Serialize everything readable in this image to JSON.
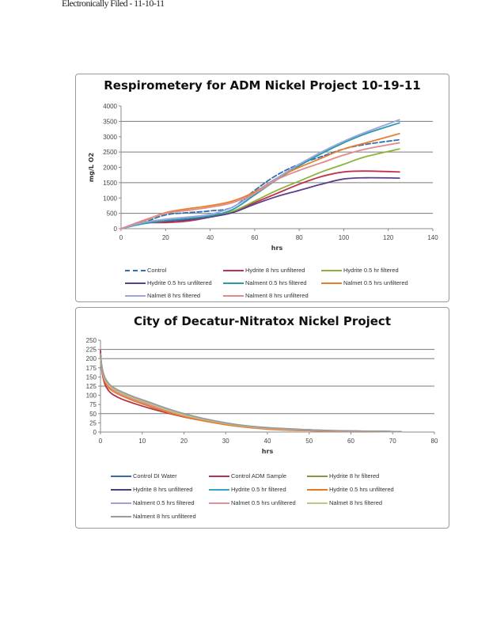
{
  "header": {
    "text": "Electronically Filed - 11-10-11"
  },
  "chart_data": [
    {
      "type": "line",
      "title": "Respirometery for ADM Nickel Project 10-19-11",
      "xlabel": "hrs",
      "ylabel": "mg/L O2",
      "xlim": [
        0,
        140
      ],
      "ylim": [
        0,
        4000
      ],
      "xticks": [
        "0",
        "20",
        "40",
        "60",
        "80",
        "100",
        "120",
        "140"
      ],
      "yticks": [
        "0",
        "500",
        "1000",
        "1500",
        "2000",
        "2500",
        "3000",
        "3500",
        "4000"
      ],
      "gridlines_y": [
        500,
        1500,
        2500,
        3500
      ],
      "legend_position": "bottom",
      "x": [
        0,
        10,
        20,
        30,
        40,
        50,
        60,
        70,
        80,
        90,
        100,
        110,
        125
      ],
      "series": [
        {
          "name": "Control",
          "color": "#2e6fb5",
          "dashed": true,
          "values": [
            0,
            200,
            450,
            520,
            580,
            700,
            1250,
            1750,
            2100,
            2350,
            2600,
            2750,
            2900
          ]
        },
        {
          "name": "Hydrite 8 hrs unfiltered",
          "color": "#c0314b",
          "values": [
            0,
            180,
            200,
            250,
            380,
            550,
            850,
            1150,
            1450,
            1700,
            1850,
            1880,
            1850
          ]
        },
        {
          "name": "Hydrite 0.5 hr filtered",
          "color": "#8db33a",
          "values": [
            0,
            190,
            260,
            300,
            400,
            560,
            900,
            1250,
            1550,
            1850,
            2100,
            2350,
            2600
          ]
        },
        {
          "name": "Hydrite 0.5 hrs unfiltered",
          "color": "#5b3f8c",
          "values": [
            0,
            180,
            240,
            290,
            380,
            520,
            800,
            1050,
            1250,
            1450,
            1620,
            1660,
            1650
          ]
        },
        {
          "name": "Nalment 0.5 hrs filtered",
          "color": "#2a9aa8",
          "values": [
            0,
            160,
            260,
            330,
            420,
            620,
            1100,
            1600,
            2050,
            2450,
            2800,
            3100,
            3450
          ]
        },
        {
          "name": "Nalmet 0.5 hrs unfiltered",
          "color": "#e87f2a",
          "values": [
            0,
            250,
            520,
            650,
            750,
            900,
            1200,
            1650,
            2000,
            2300,
            2600,
            2800,
            3100
          ]
        },
        {
          "name": "Nalmet 8 hrs filtered",
          "color": "#9aa6dd",
          "values": [
            0,
            200,
            310,
            380,
            470,
            700,
            1150,
            1650,
            2100,
            2500,
            2850,
            3150,
            3550
          ]
        },
        {
          "name": "Nalment 8 hrs unfiltered",
          "color": "#e08a8a",
          "values": [
            0,
            270,
            500,
            600,
            700,
            850,
            1150,
            1600,
            1900,
            2150,
            2400,
            2600,
            2800
          ]
        }
      ]
    },
    {
      "type": "line",
      "title": "City of Decatur-Nitratox Nickel Project",
      "xlabel": "hrs",
      "ylabel": "",
      "xlim": [
        0,
        80
      ],
      "ylim": [
        0,
        250
      ],
      "xticks": [
        "0",
        "10",
        "20",
        "30",
        "40",
        "50",
        "60",
        "70",
        "80"
      ],
      "yticks": [
        "0",
        "25",
        "50",
        "75",
        "100",
        "125",
        "150",
        "175",
        "200",
        "225",
        "250"
      ],
      "gridlines_y": [
        50,
        125,
        200,
        225
      ],
      "legend_position": "bottom",
      "x": [
        0,
        0.3,
        1,
        2,
        3,
        5,
        8,
        12,
        16,
        20,
        25,
        30,
        35,
        40,
        45,
        50,
        55,
        60,
        65,
        72
      ],
      "series": [
        {
          "name": "Control DI Water",
          "color": "#3a6aa8",
          "values": [
            215,
            175,
            140,
            122,
            112,
            100,
            86,
            70,
            56,
            44,
            32,
            22,
            15,
            10,
            7,
            5,
            3,
            2,
            2,
            1
          ]
        },
        {
          "name": "Control ADM Sample",
          "color": "#b0324e",
          "values": [
            222,
            170,
            132,
            112,
            102,
            90,
            78,
            64,
            52,
            41,
            30,
            21,
            14,
            9,
            6,
            4,
            3,
            2,
            1,
            1
          ]
        },
        {
          "name": "Hydrite 8 hr filtered",
          "color": "#7f9a3a",
          "values": [
            210,
            178,
            145,
            126,
            116,
            104,
            90,
            74,
            59,
            46,
            33,
            23,
            15,
            10,
            7,
            5,
            3,
            2,
            2,
            1
          ]
        },
        {
          "name": "Hydrite 8 hrs unfiltered",
          "color": "#4b3f7a",
          "values": [
            212,
            176,
            142,
            124,
            114,
            102,
            88,
            72,
            57,
            45,
            32,
            22,
            15,
            10,
            7,
            5,
            3,
            2,
            2,
            1
          ]
        },
        {
          "name": "Hydrite 0.5 hr filtered",
          "color": "#33a6c4",
          "values": [
            210,
            174,
            140,
            122,
            113,
            101,
            87,
            71,
            56,
            44,
            32,
            22,
            15,
            10,
            7,
            5,
            3,
            2,
            2,
            1
          ]
        },
        {
          "name": "Hydrite 0.5 hrs unfiltered",
          "color": "#e87a1e",
          "values": [
            208,
            172,
            138,
            120,
            111,
            99,
            85,
            69,
            54,
            42,
            30,
            20,
            13,
            8,
            5,
            4,
            2,
            2,
            1,
            1
          ]
        },
        {
          "name": "Nalment 0.5 hrs filtered",
          "color": "#a79bd8",
          "values": [
            212,
            180,
            148,
            130,
            120,
            108,
            94,
            78,
            62,
            48,
            35,
            24,
            16,
            11,
            8,
            6,
            4,
            3,
            2,
            1
          ]
        },
        {
          "name": "Nalmet 0.5 hrs unfiltered",
          "color": "#e3909a",
          "values": [
            210,
            176,
            143,
            125,
            115,
            103,
            89,
            73,
            58,
            45,
            33,
            23,
            15,
            10,
            7,
            5,
            3,
            2,
            2,
            1
          ]
        },
        {
          "name": "Nalmet 8 hrs filtered",
          "color": "#b4cc84",
          "values": [
            211,
            179,
            147,
            129,
            119,
            107,
            93,
            77,
            61,
            47,
            34,
            23,
            16,
            11,
            8,
            6,
            4,
            3,
            2,
            1
          ]
        },
        {
          "name": "Nalment 8 hrs unfiltered",
          "color": "#9a9a9a",
          "values": [
            213,
            181,
            150,
            132,
            122,
            110,
            96,
            80,
            64,
            50,
            36,
            25,
            17,
            12,
            9,
            6,
            4,
            3,
            2,
            1
          ]
        }
      ]
    }
  ]
}
